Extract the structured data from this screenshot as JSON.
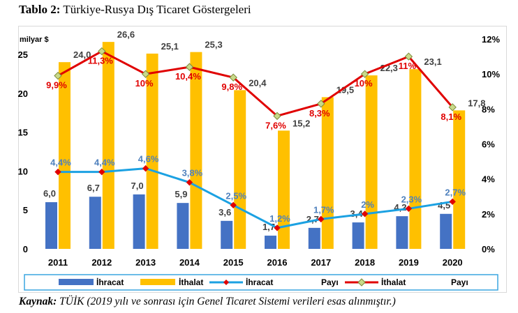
{
  "title": {
    "bold": "Tablo 2:",
    "rest": "Türkiye-Rusya Dış Ticaret Göstergeleri"
  },
  "source": {
    "bold": "Kaynak:",
    "rest": "TÜİK   (2019 yılı ve sonrası için Genel Ticaret Sistemi verileri esas alınmıştır.)"
  },
  "chart_data": {
    "type": "bar",
    "categories": [
      "2011",
      "2012",
      "2013",
      "2014",
      "2015",
      "2016",
      "2017",
      "2018",
      "2019",
      "2020"
    ],
    "ylabel": "milyar $",
    "ylim": [
      0,
      30
    ],
    "y_ticks": [
      "0",
      "5",
      "10",
      "15",
      "20",
      "25"
    ],
    "y2lim": [
      0,
      13
    ],
    "y2_ticks": [
      "0%",
      "2%",
      "4%",
      "6%",
      "8%",
      "10%",
      "12%"
    ],
    "series": [
      {
        "name": "İhracat",
        "type": "bar",
        "axis": "left",
        "color": "#4472c4",
        "values": [
          6.0,
          6.7,
          7.0,
          5.9,
          3.6,
          1.7,
          2.7,
          3.4,
          4.2,
          4.5
        ],
        "labels": [
          "6,0",
          "6,7",
          "7,0",
          "5,9",
          "3,6",
          "1,7",
          "2,7",
          "3,4",
          "4,2",
          "4,5"
        ]
      },
      {
        "name": "İthalat",
        "type": "bar",
        "axis": "left",
        "color": "#ffc000",
        "values": [
          24.0,
          26.6,
          25.1,
          25.3,
          20.4,
          15.2,
          19.5,
          22.3,
          23.1,
          17.8
        ],
        "labels": [
          "24,0",
          "26,6",
          "25,1",
          "25,3",
          "20,4",
          "15,2",
          "19,5",
          "22,3",
          "23,1",
          "17,8"
        ]
      },
      {
        "name": "İhracat Payı",
        "legend": "İhracat",
        "type": "line",
        "axis": "right",
        "color": "#1ba1e2",
        "label_color": "#4f81bd",
        "values": [
          4.4,
          4.4,
          4.6,
          3.8,
          2.5,
          1.2,
          1.7,
          2.0,
          2.3,
          2.7
        ],
        "labels": [
          "4,4%",
          "4,4%",
          "4,6%",
          "3,8%",
          "2,5%",
          "1,2%",
          "1,7%",
          "2%",
          "2,3%",
          "2,7%"
        ]
      },
      {
        "name": "İthalat Payı",
        "legend": "İthalat",
        "type": "line",
        "axis": "right",
        "color": "#e00000",
        "label_color": "#e00000",
        "values": [
          9.9,
          11.3,
          10.0,
          10.4,
          9.8,
          7.6,
          8.3,
          10.0,
          11.0,
          8.1
        ],
        "labels": [
          "9,9%",
          "11,3%",
          "10%",
          "10,4%",
          "9,8%",
          "7,6%",
          "8,3%",
          "10%",
          "11%",
          "8,1%"
        ]
      }
    ],
    "legend_entries": [
      "İhracat",
      "İthalat",
      "İhracat",
      "Payı",
      "İthalat",
      "Payı"
    ],
    "colors": {
      "export_bar": "#4472c4",
      "import_bar": "#ffc000",
      "export_line": "#1ba1e2",
      "import_line": "#e00000",
      "marker_fill": "#c9d98a",
      "legend_border": "#3aa6e0"
    }
  }
}
